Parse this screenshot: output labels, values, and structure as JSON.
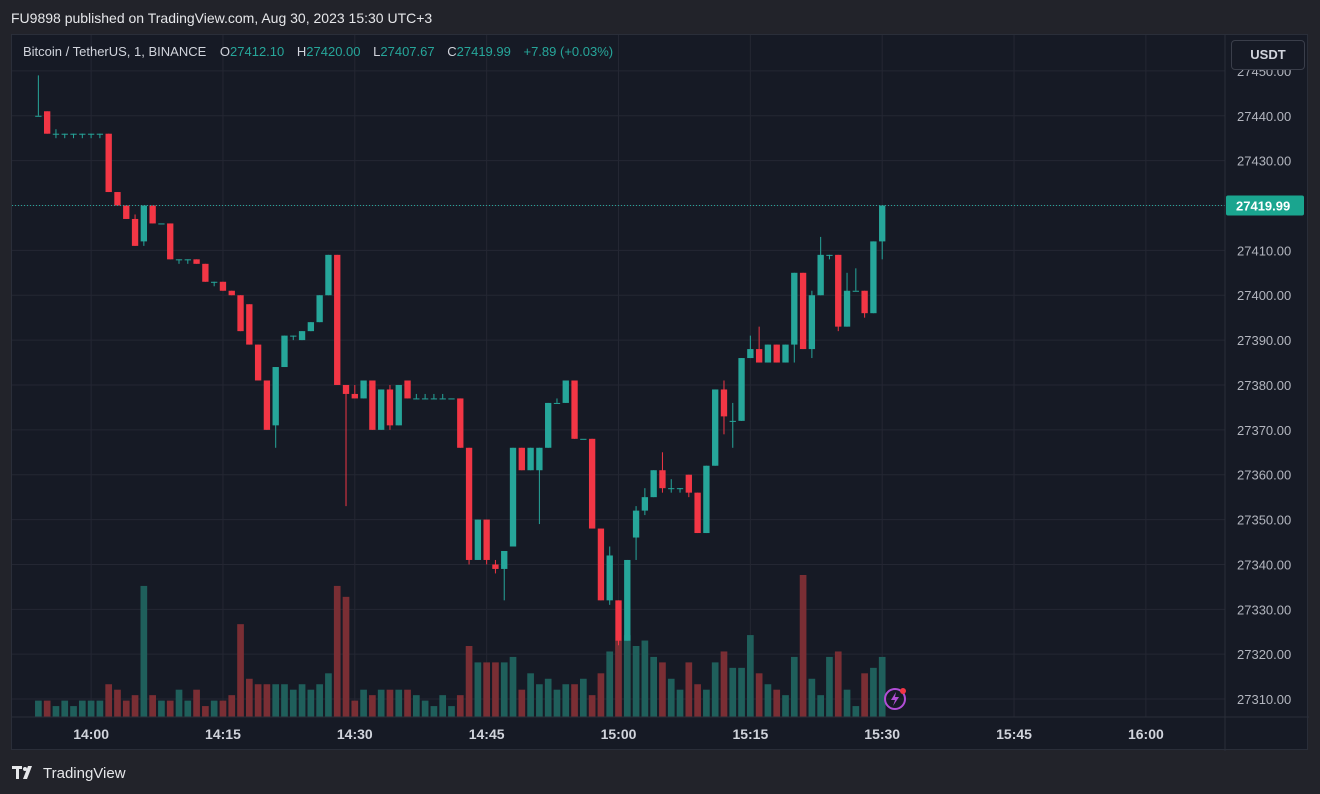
{
  "header": {
    "publish_line": "FU9898 published on TradingView.com, Aug 30, 2023 15:30 UTC+3"
  },
  "legend": {
    "symbol": "Bitcoin / TetherUS, 1, BINANCE",
    "o_label": "O",
    "o_value": "27412.10",
    "h_label": "H",
    "h_value": "27420.00",
    "l_label": "L",
    "l_value": "27407.67",
    "c_label": "C",
    "c_value": "27419.99",
    "change": "+7.89 (+0.03%)"
  },
  "currency_button": "USDT",
  "footer": {
    "logo_text": "TradingView"
  },
  "colors": {
    "up": "#26a69a",
    "down": "#f23645",
    "up_volume": "#1f5f5b",
    "down_volume": "#7a2e34",
    "price_badge": "#1aa58f"
  },
  "chart_data": {
    "type": "candlestick",
    "symbol": "Bitcoin / TetherUS",
    "interval_minutes": 1,
    "start_time": "13:54",
    "y_ticks": [
      27450,
      27440,
      27430,
      27420,
      27410,
      27400,
      27390,
      27380,
      27370,
      27360,
      27350,
      27340,
      27330,
      27320,
      27310
    ],
    "y_tick_labels": [
      "27450.00",
      "27440.00",
      "27430.00",
      "27410.00",
      "27400.00",
      "27390.00",
      "27380.00",
      "27370.00",
      "27360.00",
      "27350.00",
      "27340.00",
      "27330.00",
      "27320.00",
      "27310.00"
    ],
    "ylim": [
      27306,
      27458
    ],
    "x_tick_labels": [
      "14:00",
      "14:15",
      "14:30",
      "14:45",
      "15:00",
      "15:15",
      "15:30",
      "15:45",
      "16:00"
    ],
    "x_ticks": [
      "14:00",
      "14:15",
      "14:30",
      "14:45",
      "15:00",
      "15:15",
      "15:30",
      "15:45",
      "16:00"
    ],
    "xlim": [
      "13:51",
      "16:09"
    ],
    "last_price": 27419.99,
    "last_price_label": "27419.99",
    "candles": [
      {
        "o": 27440,
        "h": 27449,
        "l": 27440,
        "c": 27440
      },
      {
        "o": 27441,
        "h": 27441,
        "l": 27436,
        "c": 27436
      },
      {
        "o": 27436,
        "h": 27437,
        "l": 27435,
        "c": 27436
      },
      {
        "o": 27436,
        "h": 27436,
        "l": 27435,
        "c": 27436
      },
      {
        "o": 27436,
        "h": 27436,
        "l": 27435,
        "c": 27436
      },
      {
        "o": 27436,
        "h": 27436,
        "l": 27435,
        "c": 27436
      },
      {
        "o": 27436,
        "h": 27436,
        "l": 27435,
        "c": 27436
      },
      {
        "o": 27436,
        "h": 27436,
        "l": 27435,
        "c": 27436
      },
      {
        "o": 27436,
        "h": 27436,
        "l": 27423,
        "c": 27423
      },
      {
        "o": 27423,
        "h": 27423,
        "l": 27420,
        "c": 27420
      },
      {
        "o": 27420,
        "h": 27420,
        "l": 27417,
        "c": 27417
      },
      {
        "o": 27417,
        "h": 27418,
        "l": 27411,
        "c": 27411
      },
      {
        "o": 27412,
        "h": 27420,
        "l": 27411,
        "c": 27420
      },
      {
        "o": 27420,
        "h": 27420,
        "l": 27416,
        "c": 27416
      },
      {
        "o": 27416,
        "h": 27416,
        "l": 27416,
        "c": 27416
      },
      {
        "o": 27416,
        "h": 27416,
        "l": 27408,
        "c": 27408
      },
      {
        "o": 27408,
        "h": 27408,
        "l": 27407,
        "c": 27408
      },
      {
        "o": 27408,
        "h": 27408,
        "l": 27407,
        "c": 27408
      },
      {
        "o": 27408,
        "h": 27408,
        "l": 27407,
        "c": 27407
      },
      {
        "o": 27407,
        "h": 27407,
        "l": 27403,
        "c": 27403
      },
      {
        "o": 27403,
        "h": 27403,
        "l": 27402,
        "c": 27403
      },
      {
        "o": 27403,
        "h": 27403,
        "l": 27401,
        "c": 27401
      },
      {
        "o": 27401,
        "h": 27401,
        "l": 27400,
        "c": 27400
      },
      {
        "o": 27400,
        "h": 27400,
        "l": 27392,
        "c": 27392
      },
      {
        "o": 27398,
        "h": 27398,
        "l": 27389,
        "c": 27389
      },
      {
        "o": 27389,
        "h": 27389,
        "l": 27381,
        "c": 27381
      },
      {
        "o": 27381,
        "h": 27381,
        "l": 27370,
        "c": 27370
      },
      {
        "o": 27371,
        "h": 27384,
        "l": 27366,
        "c": 27384
      },
      {
        "o": 27384,
        "h": 27391,
        "l": 27384,
        "c": 27391
      },
      {
        "o": 27391,
        "h": 27391,
        "l": 27390,
        "c": 27391
      },
      {
        "o": 27390,
        "h": 27392,
        "l": 27390,
        "c": 27392
      },
      {
        "o": 27392,
        "h": 27394,
        "l": 27392,
        "c": 27394
      },
      {
        "o": 27394,
        "h": 27400,
        "l": 27394,
        "c": 27400
      },
      {
        "o": 27400,
        "h": 27409,
        "l": 27400,
        "c": 27409
      },
      {
        "o": 27409,
        "h": 27409,
        "l": 27380,
        "c": 27380
      },
      {
        "o": 27380,
        "h": 27380,
        "l": 27353,
        "c": 27378
      },
      {
        "o": 27378,
        "h": 27380,
        "l": 27377,
        "c": 27377
      },
      {
        "o": 27377,
        "h": 27381,
        "l": 27377,
        "c": 27381
      },
      {
        "o": 27381,
        "h": 27381,
        "l": 27370,
        "c": 27370
      },
      {
        "o": 27370,
        "h": 27379,
        "l": 27370,
        "c": 27379
      },
      {
        "o": 27379,
        "h": 27380,
        "l": 27370,
        "c": 27371
      },
      {
        "o": 27371,
        "h": 27380,
        "l": 27371,
        "c": 27380
      },
      {
        "o": 27381,
        "h": 27381,
        "l": 27377,
        "c": 27377
      },
      {
        "o": 27377,
        "h": 27378,
        "l": 27377,
        "c": 27377
      },
      {
        "o": 27377,
        "h": 27378,
        "l": 27377,
        "c": 27377
      },
      {
        "o": 27377,
        "h": 27378,
        "l": 27377,
        "c": 27377
      },
      {
        "o": 27377,
        "h": 27378,
        "l": 27377,
        "c": 27377
      },
      {
        "o": 27377,
        "h": 27377,
        "l": 27377,
        "c": 27377
      },
      {
        "o": 27377,
        "h": 27377,
        "l": 27366,
        "c": 27366
      },
      {
        "o": 27366,
        "h": 27366,
        "l": 27340,
        "c": 27341
      },
      {
        "o": 27341,
        "h": 27350,
        "l": 27341,
        "c": 27350
      },
      {
        "o": 27350,
        "h": 27350,
        "l": 27340,
        "c": 27341
      },
      {
        "o": 27340,
        "h": 27341,
        "l": 27338,
        "c": 27339
      },
      {
        "o": 27339,
        "h": 27343,
        "l": 27332,
        "c": 27343
      },
      {
        "o": 27344,
        "h": 27366,
        "l": 27344,
        "c": 27366
      },
      {
        "o": 27366,
        "h": 27366,
        "l": 27361,
        "c": 27361
      },
      {
        "o": 27361,
        "h": 27366,
        "l": 27361,
        "c": 27366
      },
      {
        "o": 27361,
        "h": 27366,
        "l": 27349,
        "c": 27366
      },
      {
        "o": 27366,
        "h": 27376,
        "l": 27366,
        "c": 27376
      },
      {
        "o": 27376,
        "h": 27377,
        "l": 27376,
        "c": 27376
      },
      {
        "o": 27376,
        "h": 27381,
        "l": 27376,
        "c": 27381
      },
      {
        "o": 27381,
        "h": 27381,
        "l": 27368,
        "c": 27368
      },
      {
        "o": 27368,
        "h": 27368,
        "l": 27368,
        "c": 27368
      },
      {
        "o": 27368,
        "h": 27368,
        "l": 27348,
        "c": 27348
      },
      {
        "o": 27348,
        "h": 27348,
        "l": 27332,
        "c": 27332
      },
      {
        "o": 27332,
        "h": 27344,
        "l": 27331,
        "c": 27342
      },
      {
        "o": 27332,
        "h": 27332,
        "l": 27322,
        "c": 27323
      },
      {
        "o": 27323,
        "h": 27341,
        "l": 27323,
        "c": 27341
      },
      {
        "o": 27346,
        "h": 27353,
        "l": 27341,
        "c": 27352
      },
      {
        "o": 27352,
        "h": 27357,
        "l": 27351,
        "c": 27355
      },
      {
        "o": 27355,
        "h": 27361,
        "l": 27355,
        "c": 27361
      },
      {
        "o": 27361,
        "h": 27365,
        "l": 27356,
        "c": 27357
      },
      {
        "o": 27357,
        "h": 27359,
        "l": 27356,
        "c": 27357
      },
      {
        "o": 27357,
        "h": 27357,
        "l": 27356,
        "c": 27357
      },
      {
        "o": 27360,
        "h": 27360,
        "l": 27355,
        "c": 27356
      },
      {
        "o": 27356,
        "h": 27356,
        "l": 27347,
        "c": 27347
      },
      {
        "o": 27347,
        "h": 27362,
        "l": 27347,
        "c": 27362
      },
      {
        "o": 27362,
        "h": 27379,
        "l": 27362,
        "c": 27379
      },
      {
        "o": 27379,
        "h": 27381,
        "l": 27369,
        "c": 27373
      },
      {
        "o": 27372,
        "h": 27376,
        "l": 27366,
        "c": 27372
      },
      {
        "o": 27372,
        "h": 27386,
        "l": 27372,
        "c": 27386
      },
      {
        "o": 27386,
        "h": 27391,
        "l": 27386,
        "c": 27388
      },
      {
        "o": 27388,
        "h": 27393,
        "l": 27385,
        "c": 27385
      },
      {
        "o": 27385,
        "h": 27389,
        "l": 27385,
        "c": 27389
      },
      {
        "o": 27389,
        "h": 27389,
        "l": 27385,
        "c": 27385
      },
      {
        "o": 27385,
        "h": 27389,
        "l": 27385,
        "c": 27389
      },
      {
        "o": 27389,
        "h": 27405,
        "l": 27385,
        "c": 27405
      },
      {
        "o": 27405,
        "h": 27405,
        "l": 27388,
        "c": 27388
      },
      {
        "o": 27388,
        "h": 27401,
        "l": 27386,
        "c": 27400
      },
      {
        "o": 27400,
        "h": 27413,
        "l": 27400,
        "c": 27409
      },
      {
        "o": 27409,
        "h": 27409,
        "l": 27408,
        "c": 27409
      },
      {
        "o": 27409,
        "h": 27409,
        "l": 27392,
        "c": 27393
      },
      {
        "o": 27393,
        "h": 27405,
        "l": 27393,
        "c": 27401
      },
      {
        "o": 27401,
        "h": 27406,
        "l": 27401,
        "c": 27401
      },
      {
        "o": 27401,
        "h": 27401,
        "l": 27395,
        "c": 27396
      },
      {
        "o": 27396,
        "h": 27412,
        "l": 27396,
        "c": 27412
      },
      {
        "o": 27412,
        "h": 27420,
        "l": 27408,
        "c": 27420
      }
    ],
    "volume": [
      3,
      3,
      2,
      3,
      2,
      3,
      3,
      3,
      6,
      5,
      3,
      4,
      24,
      4,
      3,
      3,
      5,
      3,
      5,
      2,
      3,
      3,
      4,
      17,
      7,
      6,
      6,
      6,
      6,
      5,
      6,
      5,
      6,
      8,
      24,
      22,
      3,
      5,
      4,
      5,
      5,
      5,
      5,
      4,
      3,
      2,
      4,
      2,
      4,
      13,
      10,
      10,
      10,
      10,
      11,
      5,
      8,
      6,
      7,
      5,
      6,
      6,
      7,
      4,
      8,
      12,
      14,
      15,
      13,
      14,
      11,
      10,
      7,
      5,
      10,
      6,
      5,
      10,
      12,
      9,
      9,
      15,
      8,
      6,
      5,
      4,
      11,
      26,
      7,
      4,
      11,
      12,
      5,
      2,
      8,
      9,
      11
    ]
  }
}
